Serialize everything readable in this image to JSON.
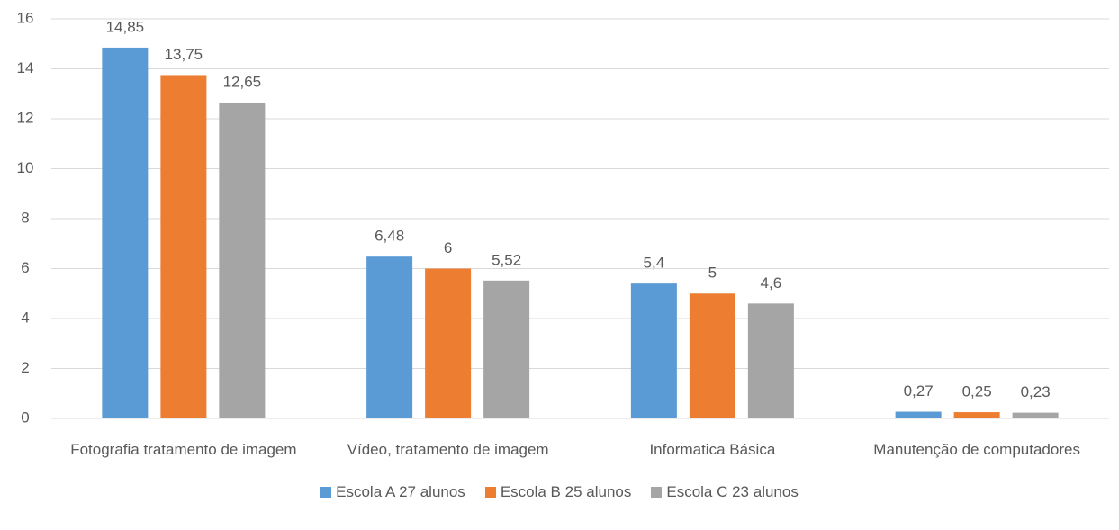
{
  "chart_data": {
    "type": "bar",
    "categories": [
      "Fotografia tratamento de imagem",
      "Vídeo, tratamento de imagem",
      "Informatica Básica",
      "Manutenção de computadores"
    ],
    "series": [
      {
        "name": "Escola A 27 alunos",
        "color": "#5b9bd5",
        "values": [
          14.85,
          6.48,
          5.4,
          0.27
        ],
        "value_labels": [
          "14,85",
          "6,48",
          "5,4",
          "0,27"
        ]
      },
      {
        "name": "Escola B 25 alunos",
        "color": "#ed7d31",
        "values": [
          13.75,
          6,
          5,
          0.25
        ],
        "value_labels": [
          "13,75",
          "6",
          "5",
          "0,25"
        ]
      },
      {
        "name": "Escola C 23 alunos",
        "color": "#a5a5a5",
        "values": [
          12.65,
          5.52,
          4.6,
          0.23
        ],
        "value_labels": [
          "12,65",
          "5,52",
          "4,6",
          "0,23"
        ]
      }
    ],
    "ylim": [
      0,
      16
    ],
    "yticks": [
      0,
      2,
      4,
      6,
      8,
      10,
      12,
      14,
      16
    ],
    "grid": true,
    "legend": "bottom"
  }
}
